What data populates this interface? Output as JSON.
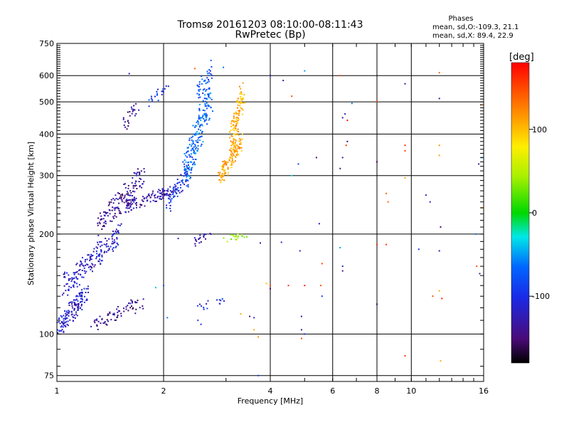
{
  "chart_data": {
    "type": "scatter",
    "title": "Tromsø 20161203 08:10:00-08:11:43",
    "subtitle": "RwPretec (Bp)",
    "xlabel": "Frequency [MHz]",
    "ylabel": "Stationary phase Virtual Height [km]",
    "x_scale": "log",
    "y_scale": "log",
    "xlim": [
      1,
      16
    ],
    "ylim": [
      72,
      750
    ],
    "x_ticks": [
      1,
      2,
      4,
      6,
      8,
      10,
      16
    ],
    "x_tick_labels": [
      "1",
      "2",
      "4",
      "6",
      "8",
      "10",
      "16"
    ],
    "y_ticks": [
      75,
      100,
      200,
      300,
      400,
      500,
      600,
      750
    ],
    "y_tick_labels": [
      "75",
      "100",
      "200",
      "300",
      "400",
      "500",
      "600",
      "750"
    ],
    "grid": true,
    "legend_block": {
      "heading": "Phases",
      "line1": "mean, sd,O:-109.3, 21.1",
      "line2": "mean, sd,X: 89.4, 22.9"
    },
    "colorbar": {
      "label": "[deg]",
      "range": [
        -180,
        180
      ],
      "ticks": [
        100,
        0,
        -100
      ],
      "tick_labels": [
        "100",
        "0",
        "-100"
      ]
    },
    "clusters": [
      {
        "x0": 1.0,
        "x1": 1.22,
        "h0": 103,
        "h1": 135,
        "phase": -115,
        "n": 140
      },
      {
        "x0": 1.05,
        "x1": 1.5,
        "h0": 140,
        "h1": 200,
        "phase": -115,
        "n": 180
      },
      {
        "x0": 1.3,
        "x1": 1.75,
        "h0": 210,
        "h1": 300,
        "phase": -135,
        "n": 140
      },
      {
        "x0": 1.25,
        "x1": 1.75,
        "h0": 105,
        "h1": 125,
        "phase": -140,
        "n": 70
      },
      {
        "x0": 1.55,
        "x1": 2.1,
        "h0": 240,
        "h1": 270,
        "phase": -130,
        "n": 110
      },
      {
        "x0": 2.05,
        "x1": 2.35,
        "h0": 245,
        "h1": 310,
        "phase": -100,
        "n": 70
      },
      {
        "x0": 2.3,
        "x1": 2.7,
        "h0": 300,
        "h1": 520,
        "phase": -70,
        "n": 200
      },
      {
        "x0": 2.5,
        "x1": 2.75,
        "h0": 520,
        "h1": 640,
        "phase": -80,
        "n": 40
      },
      {
        "x0": 2.9,
        "x1": 3.3,
        "h0": 300,
        "h1": 380,
        "phase": 115,
        "n": 120
      },
      {
        "x0": 3.1,
        "x1": 3.35,
        "h0": 380,
        "h1": 530,
        "phase": 110,
        "n": 100
      },
      {
        "x0": 1.55,
        "x1": 1.7,
        "h0": 420,
        "h1": 490,
        "phase": -140,
        "n": 25
      },
      {
        "x0": 1.8,
        "x1": 2.05,
        "h0": 500,
        "h1": 560,
        "phase": -100,
        "n": 20
      },
      {
        "x0": 2.4,
        "x1": 2.7,
        "h0": 188,
        "h1": 198,
        "phase": -130,
        "n": 20
      },
      {
        "x0": 2.95,
        "x1": 3.4,
        "h0": 192,
        "h1": 199,
        "phase": 45,
        "n": 18
      },
      {
        "x0": 2.5,
        "x1": 3.0,
        "h0": 120,
        "h1": 127,
        "phase": -105,
        "n": 15
      }
    ],
    "scatter_points": [
      {
        "x": 1.6,
        "y": 608,
        "phase": -110
      },
      {
        "x": 2.45,
        "y": 630,
        "phase": 140
      },
      {
        "x": 2.95,
        "y": 635,
        "phase": -60
      },
      {
        "x": 3.35,
        "y": 570,
        "phase": 120
      },
      {
        "x": 4.0,
        "y": 600,
        "phase": -120
      },
      {
        "x": 4.35,
        "y": 580,
        "phase": -130
      },
      {
        "x": 4.6,
        "y": 520,
        "phase": 150
      },
      {
        "x": 5.0,
        "y": 620,
        "phase": -50
      },
      {
        "x": 6.3,
        "y": 600,
        "phase": 150
      },
      {
        "x": 6.8,
        "y": 495,
        "phase": -60
      },
      {
        "x": 8.0,
        "y": 502,
        "phase": 150
      },
      {
        "x": 9.6,
        "y": 567,
        "phase": -130
      },
      {
        "x": 12.0,
        "y": 612,
        "phase": 140
      },
      {
        "x": 12.0,
        "y": 512,
        "phase": -130
      },
      {
        "x": 15.7,
        "y": 490,
        "phase": 120
      },
      {
        "x": 6.5,
        "y": 460,
        "phase": -120
      },
      {
        "x": 6.6,
        "y": 440,
        "phase": 170
      },
      {
        "x": 6.4,
        "y": 448,
        "phase": -140
      },
      {
        "x": 6.6,
        "y": 380,
        "phase": -150
      },
      {
        "x": 6.55,
        "y": 370,
        "phase": 160
      },
      {
        "x": 9.6,
        "y": 370,
        "phase": 170
      },
      {
        "x": 9.6,
        "y": 356,
        "phase": 150
      },
      {
        "x": 12.0,
        "y": 370,
        "phase": 120
      },
      {
        "x": 12.0,
        "y": 345,
        "phase": 115
      },
      {
        "x": 5.4,
        "y": 340,
        "phase": -150
      },
      {
        "x": 6.4,
        "y": 340,
        "phase": -130
      },
      {
        "x": 8.0,
        "y": 330,
        "phase": -150
      },
      {
        "x": 15.5,
        "y": 325,
        "phase": -130
      },
      {
        "x": 15.8,
        "y": 340,
        "phase": -40
      },
      {
        "x": 4.8,
        "y": 325,
        "phase": -90
      },
      {
        "x": 4.6,
        "y": 300,
        "phase": -30
      },
      {
        "x": 6.3,
        "y": 315,
        "phase": -140
      },
      {
        "x": 9.6,
        "y": 295,
        "phase": 110
      },
      {
        "x": 8.5,
        "y": 265,
        "phase": 140
      },
      {
        "x": 8.6,
        "y": 250,
        "phase": 140
      },
      {
        "x": 11.0,
        "y": 262,
        "phase": -120
      },
      {
        "x": 11.3,
        "y": 250,
        "phase": -110
      },
      {
        "x": 12.1,
        "y": 210,
        "phase": -150
      },
      {
        "x": 15.2,
        "y": 200,
        "phase": -60
      },
      {
        "x": 15.8,
        "y": 240,
        "phase": 120
      },
      {
        "x": 5.5,
        "y": 215,
        "phase": -120
      },
      {
        "x": 2.2,
        "y": 194,
        "phase": -130
      },
      {
        "x": 3.75,
        "y": 188,
        "phase": -130
      },
      {
        "x": 4.3,
        "y": 189,
        "phase": -110
      },
      {
        "x": 4.85,
        "y": 178,
        "phase": -120
      },
      {
        "x": 6.3,
        "y": 182,
        "phase": -50
      },
      {
        "x": 8.0,
        "y": 186,
        "phase": 160
      },
      {
        "x": 8.5,
        "y": 186,
        "phase": 160
      },
      {
        "x": 10.5,
        "y": 180,
        "phase": -100
      },
      {
        "x": 12.0,
        "y": 178,
        "phase": -120
      },
      {
        "x": 15.3,
        "y": 160,
        "phase": 150
      },
      {
        "x": 5.6,
        "y": 163,
        "phase": 150
      },
      {
        "x": 6.4,
        "y": 160,
        "phase": -120
      },
      {
        "x": 6.4,
        "y": 155,
        "phase": -150
      },
      {
        "x": 4.0,
        "y": 140,
        "phase": 150
      },
      {
        "x": 3.9,
        "y": 142,
        "phase": 100
      },
      {
        "x": 4.5,
        "y": 140,
        "phase": 160
      },
      {
        "x": 5.0,
        "y": 140,
        "phase": 170
      },
      {
        "x": 5.55,
        "y": 140,
        "phase": 150
      },
      {
        "x": 5.6,
        "y": 130,
        "phase": -90
      },
      {
        "x": 4.0,
        "y": 137,
        "phase": -150
      },
      {
        "x": 11.5,
        "y": 130,
        "phase": 150
      },
      {
        "x": 12.0,
        "y": 135,
        "phase": 110
      },
      {
        "x": 12.2,
        "y": 128,
        "phase": 170
      },
      {
        "x": 15.6,
        "y": 152,
        "phase": -130
      },
      {
        "x": 8.0,
        "y": 123,
        "phase": -150
      },
      {
        "x": 3.5,
        "y": 113,
        "phase": -150
      },
      {
        "x": 4.9,
        "y": 113,
        "phase": -120
      },
      {
        "x": 4.9,
        "y": 103,
        "phase": -140
      },
      {
        "x": 3.6,
        "y": 103,
        "phase": 110
      },
      {
        "x": 3.7,
        "y": 98,
        "phase": 120
      },
      {
        "x": 4.9,
        "y": 97,
        "phase": 150
      },
      {
        "x": 5.0,
        "y": 100,
        "phase": -100
      },
      {
        "x": 9.6,
        "y": 86,
        "phase": 160
      },
      {
        "x": 12.1,
        "y": 83,
        "phase": 110
      },
      {
        "x": 3.7,
        "y": 75,
        "phase": -90
      },
      {
        "x": 1.9,
        "y": 138,
        "phase": -40
      },
      {
        "x": 2.0,
        "y": 140,
        "phase": -80
      },
      {
        "x": 2.05,
        "y": 112,
        "phase": -60
      },
      {
        "x": 2.5,
        "y": 110,
        "phase": -90
      },
      {
        "x": 2.55,
        "y": 107,
        "phase": -100
      },
      {
        "x": 3.3,
        "y": 115,
        "phase": 110
      },
      {
        "x": 3.6,
        "y": 112,
        "phase": -110
      }
    ]
  }
}
